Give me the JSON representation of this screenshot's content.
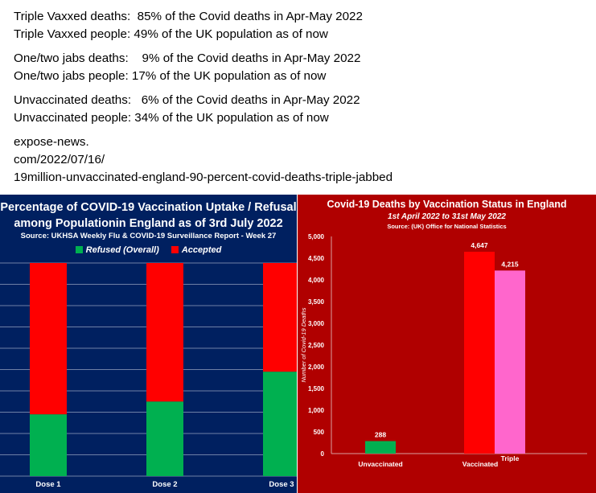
{
  "text": {
    "lines": [
      "Triple Vaxxed deaths:  85% of the Covid deaths in Apr-May 2022",
      "Triple Vaxxed people: 49% of the UK population as of now",
      "One/two jabs deaths:    9% of the Covid deaths in Apr-May 2022",
      "One/two jabs people: 17% of the UK population as of now",
      "Unvaccinated deaths:   6% of the Covid deaths in Apr-May 2022",
      "Unvaccinated people: 34% of the UK population as of now"
    ],
    "url_lines": [
      "expose-news.",
      "com/2022/07/16/",
      "19million-unvaccinated-england-90-percent-covid-deaths-triple-jabbed"
    ]
  },
  "chart_data": [
    {
      "type": "bar",
      "stacked": true,
      "title": "Percentage of COVID-19 Vaccination Uptake / Refusal among Populationin England as of 3rd July 2022",
      "title_lines": [
        "Percentage of COVID-19 Vaccination Uptake / Refusal",
        "among Populationin England as of 3rd July 2022"
      ],
      "source": "Source: UKHSA Weekly Flu & COVID-19 Surveillance Report - Week 27",
      "categories": [
        "Dose 1",
        "Dose 2",
        "Dose 3"
      ],
      "series": [
        {
          "name": "Refused (Overall)",
          "values": [
            29,
            35,
            49
          ],
          "color": "#00b050"
        },
        {
          "name": "Accepted",
          "values": [
            71,
            65,
            51
          ],
          "color": "#ff0000"
        }
      ],
      "ylim": [
        0,
        100
      ],
      "legend": "top"
    },
    {
      "type": "bar",
      "title": "Covid-19 Deaths by Vaccination Status in England",
      "subtitle": "1st April 2022 to 31st May 2022",
      "source": "Source: (UK) Office for National Statistics",
      "ylabel": "Number of Covid-19 Deaths",
      "ylim": [
        0,
        5000
      ],
      "yticks": [
        0,
        500,
        1000,
        1500,
        2000,
        2500,
        3000,
        3500,
        4000,
        4500,
        5000
      ],
      "ytick_labels": [
        "0",
        "500",
        "1,000",
        "1,500",
        "2,000",
        "2,500",
        "3,000",
        "3,500",
        "4,000",
        "4,500",
        "5,000"
      ],
      "bars": [
        {
          "label": "Unvaccinated",
          "category": "Unvaccinated",
          "value": 288,
          "value_label": "288",
          "color": "#00b050"
        },
        {
          "label": "Vaccinated",
          "category": "Vaccinated",
          "value": 4647,
          "value_label": "4,647",
          "color": "#ff0000"
        },
        {
          "label": "Triple",
          "category": "Vaccinated",
          "value": 4215,
          "value_label": "4,215",
          "color": "#ff66cc"
        }
      ]
    }
  ]
}
